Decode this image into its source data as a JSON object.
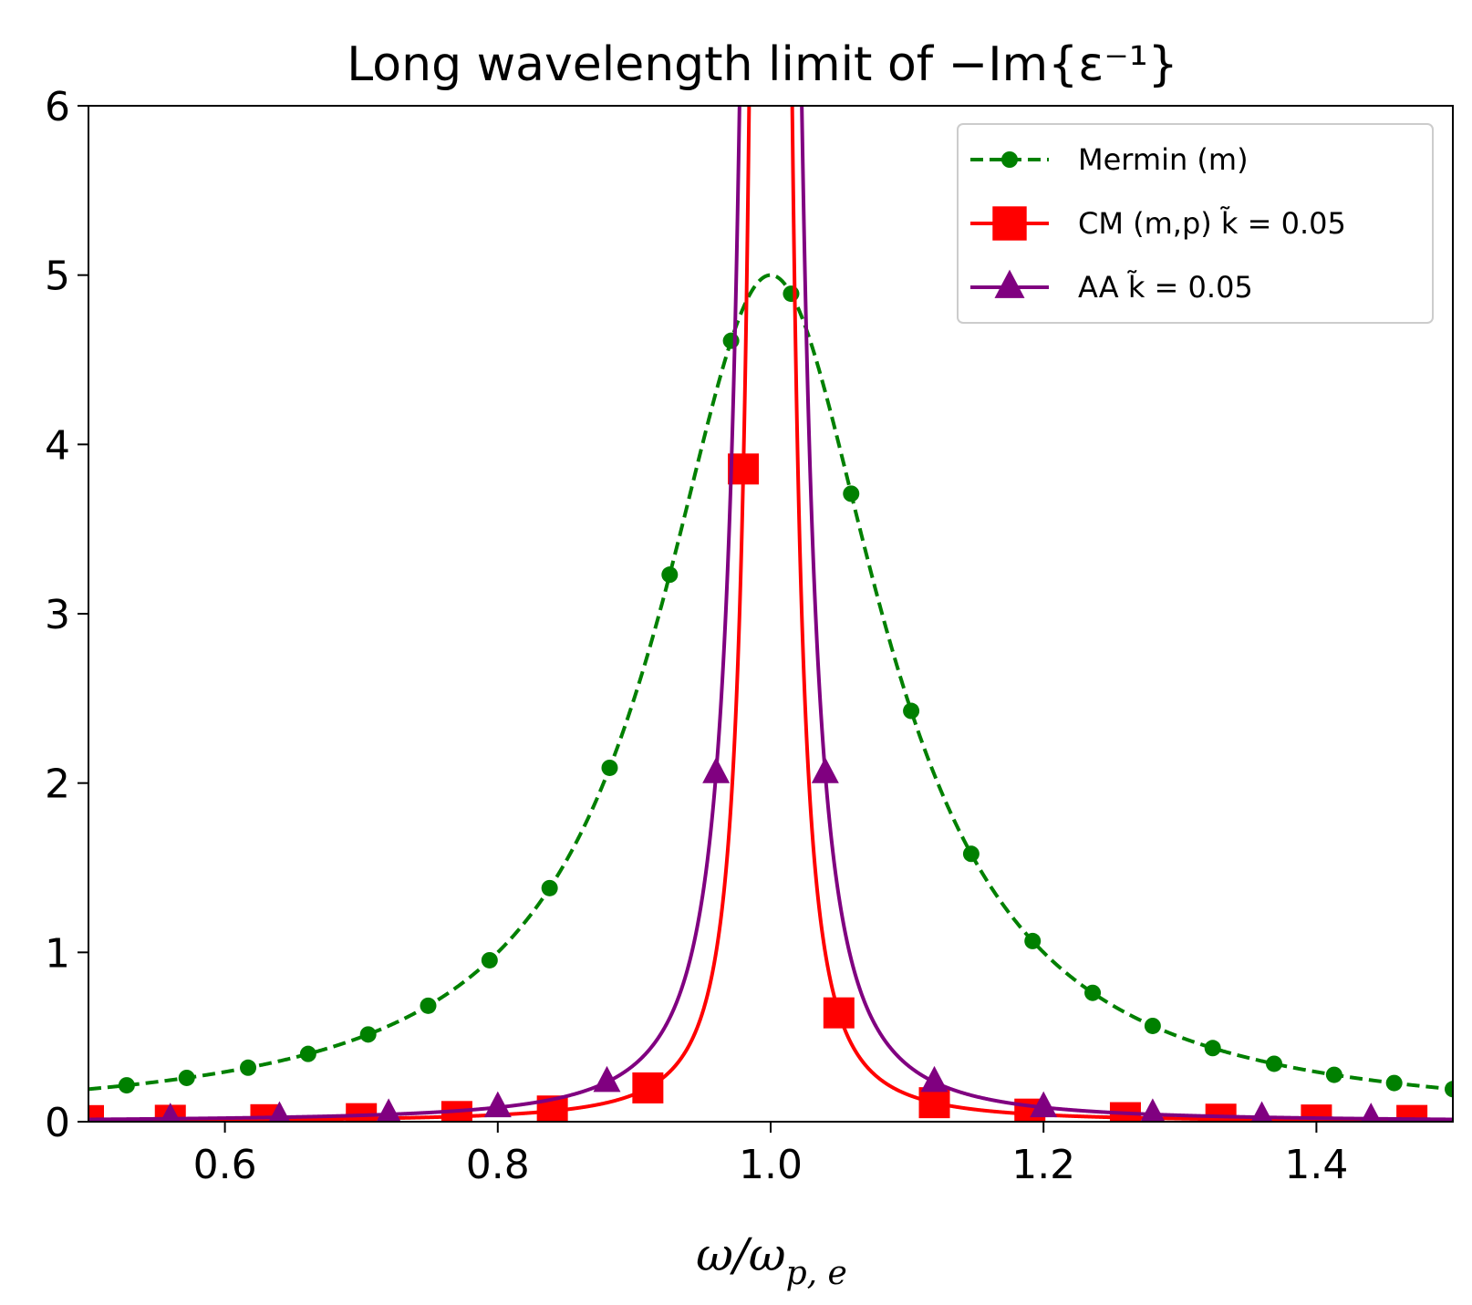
{
  "chart_data": {
    "type": "line",
    "title": "Long wavelength limit of −Im{ε⁻¹}",
    "xlabel": "ω/ω",
    "xlabel_sub": "p, e",
    "ylabel": "",
    "xlim": [
      0.5,
      1.5
    ],
    "ylim": [
      0,
      6
    ],
    "xticks": [
      0.6,
      0.8,
      1.0,
      1.2,
      1.4
    ],
    "xtick_labels": [
      "0.6",
      "0.8",
      "1.0",
      "1.2",
      "1.4"
    ],
    "yticks": [
      0,
      1,
      2,
      3,
      4,
      5,
      6
    ],
    "ytick_labels": [
      "0",
      "1",
      "2",
      "3",
      "4",
      "5",
      "6"
    ],
    "grid": false,
    "legend_position": "top-right",
    "series": [
      {
        "name": "Mermin (m)",
        "color": "#008000",
        "line_style": "dashed",
        "marker": "circle",
        "model": {
          "kind": "lorentzian",
          "center": 1.0,
          "peak": 5.0,
          "halfwidth": 0.1
        },
        "markers_x": [
          0.528,
          0.572,
          0.617,
          0.661,
          0.705,
          0.749,
          0.794,
          0.838,
          0.882,
          0.926,
          0.971,
          1.015,
          1.059,
          1.103,
          1.147,
          1.192,
          1.236,
          1.28,
          1.324,
          1.369,
          1.413,
          1.457,
          1.5
        ]
      },
      {
        "name": "CM (m,p) k̃ = 0.05",
        "label_text": "CM (m,p)",
        "label_k": "k̃ = 0.05",
        "color": "#ff0000",
        "line_style": "solid",
        "marker": "square",
        "model": {
          "kind": "lorentzian",
          "center": 1.0,
          "peak": 80.0,
          "halfwidth": 0.0045
        },
        "markers_x": [
          0.5,
          0.56,
          0.63,
          0.7,
          0.77,
          0.84,
          0.91,
          0.98,
          1.05,
          1.12,
          1.19,
          1.26,
          1.33,
          1.4,
          1.47
        ]
      },
      {
        "name": "AA k̃ = 0.05",
        "label_text": "AA",
        "label_k": "k̃ = 0.05",
        "color": "#800080",
        "line_style": "solid",
        "marker": "triangle",
        "model": {
          "kind": "lorentzian",
          "center": 1.0,
          "peak": 80.0,
          "halfwidth": 0.0065
        },
        "markers_x": [
          0.56,
          0.64,
          0.72,
          0.8,
          0.88,
          0.96,
          1.04,
          1.12,
          1.2,
          1.28,
          1.36,
          1.44
        ]
      }
    ]
  }
}
